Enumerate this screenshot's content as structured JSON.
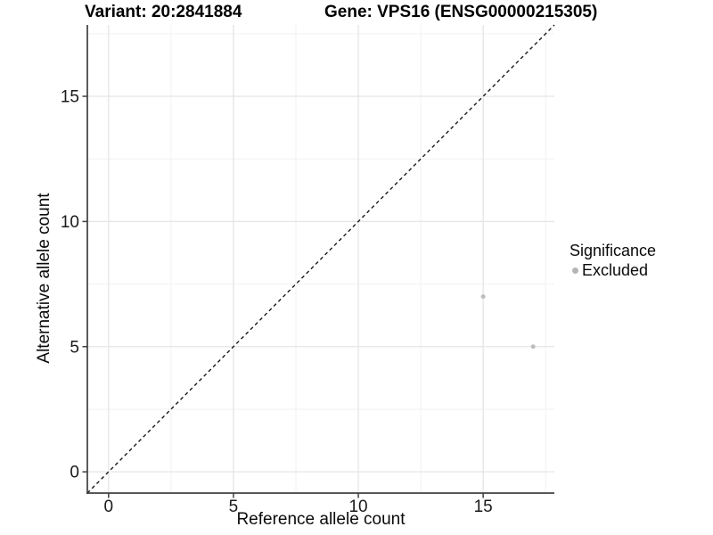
{
  "header": {
    "variant_title": "Variant: 20:2841884",
    "gene_title": "Gene: VPS16 (ENSG00000215305)"
  },
  "chart_data": {
    "type": "scatter",
    "xlabel": "Reference allele count",
    "ylabel": "Alternative allele count",
    "xlim": [
      -0.85,
      17.85
    ],
    "ylim": [
      -0.85,
      17.85
    ],
    "x_ticks": [
      0,
      5,
      10,
      15
    ],
    "y_ticks": [
      0,
      5,
      10,
      15
    ],
    "x_minor_ticks": [
      2.5,
      7.5,
      12.5,
      17.5
    ],
    "y_minor_ticks": [
      2.5,
      7.5,
      12.5,
      17.5
    ],
    "grid": true,
    "series": [
      {
        "name": "Excluded",
        "color": "#bdbdbd",
        "points": [
          {
            "x": 15,
            "y": 7
          },
          {
            "x": 17,
            "y": 5
          }
        ]
      }
    ],
    "reference_line": {
      "style": "dashed",
      "from": [
        -0.85,
        -0.85
      ],
      "to": [
        17.85,
        17.85
      ],
      "color": "#1a1a1a",
      "meaning": "identity y = x"
    },
    "legend_position": "right"
  },
  "legend": {
    "title": "Significance",
    "items": [
      {
        "label": "Excluded",
        "color": "#b5b5b5",
        "marker": "circle"
      }
    ]
  },
  "colors": {
    "background": "#ffffff",
    "grid_major": "#e5e5e5",
    "grid_minor": "#f1f1f1",
    "axis_line": "#404040",
    "tick_text": "#1a1a1a",
    "point": "#bdbdbd"
  }
}
